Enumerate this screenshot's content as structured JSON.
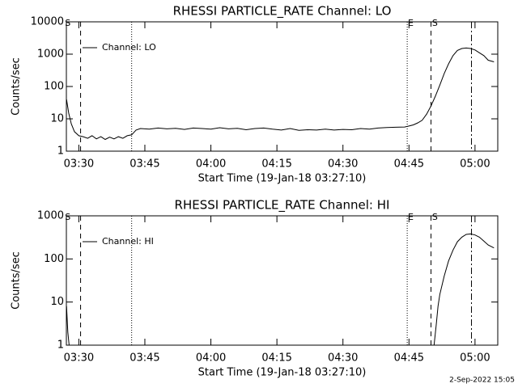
{
  "chart_data": [
    {
      "type": "line",
      "title": "RHESSI PARTICLE_RATE Channel: LO",
      "x_label": "Start Time (19-Jan-18 03:27:10)",
      "y_label": "Counts/sec",
      "log_y": true,
      "legend": "upper left",
      "xlim": [
        207.17,
        305.17
      ],
      "xticks": [
        {
          "value": 210,
          "label": "03:30"
        },
        {
          "value": 225,
          "label": "03:45"
        },
        {
          "value": 240,
          "label": "04:00"
        },
        {
          "value": 255,
          "label": "04:15"
        },
        {
          "value": 270,
          "label": "04:30"
        },
        {
          "value": 285,
          "label": "04:45"
        },
        {
          "value": 300,
          "label": "05:00"
        }
      ],
      "ylim": [
        1,
        10000
      ],
      "yticks": [
        1,
        10,
        100,
        1000,
        10000
      ],
      "x": [
        207.2,
        207.7,
        208.3,
        209,
        210,
        211,
        212,
        213,
        214,
        215,
        216,
        217,
        218,
        219,
        220,
        221,
        222,
        223,
        224,
        226,
        228,
        230,
        232,
        234,
        236,
        238,
        240,
        242,
        244,
        246,
        248,
        250,
        252,
        254,
        256,
        258,
        260,
        262,
        264,
        266,
        268,
        270,
        272,
        274,
        276,
        278,
        280,
        282,
        284,
        285,
        286,
        287,
        288,
        289,
        290,
        291,
        292,
        293,
        294,
        295,
        296,
        297,
        298,
        299,
        300,
        301,
        302,
        303,
        304.3
      ],
      "series": [
        {
          "name": "Channel: LO",
          "color": "#000000",
          "values": [
            40,
            15,
            7,
            4,
            3,
            2.8,
            2.5,
            3,
            2.4,
            2.8,
            2.3,
            2.7,
            2.4,
            2.8,
            2.5,
            3,
            3.2,
            4.5,
            5,
            4.8,
            5.2,
            4.9,
            5.1,
            4.7,
            5.2,
            5,
            4.8,
            5.3,
            4.9,
            5.1,
            4.6,
            5,
            5.2,
            4.8,
            4.5,
            5,
            4.4,
            4.6,
            4.5,
            4.8,
            4.5,
            4.7,
            4.6,
            5,
            4.8,
            5.2,
            5.4,
            5.5,
            5.6,
            6,
            6.5,
            7.5,
            9,
            14,
            25,
            50,
            110,
            250,
            500,
            900,
            1300,
            1500,
            1550,
            1500,
            1350,
            1100,
            900,
            650,
            580
          ]
        }
      ],
      "vlines": [
        {
          "x": 210.4,
          "style": "dashed"
        },
        {
          "x": 222.0,
          "style": "dotted"
        },
        {
          "x": 284.6,
          "style": "dotted"
        },
        {
          "x": 290.0,
          "style": "dashed"
        },
        {
          "x": 299.2,
          "style": "dashdot"
        }
      ],
      "annotations": [
        {
          "text": "S",
          "x": 207.5
        },
        {
          "text": "E",
          "x": 285.4
        },
        {
          "text": "S",
          "x": 290.9
        }
      ]
    },
    {
      "type": "line",
      "title": "RHESSI PARTICLE_RATE Channel: HI",
      "x_label": "Start Time (19-Jan-18 03:27:10)",
      "y_label": "Counts/sec",
      "log_y": true,
      "legend": "upper left",
      "xlim": [
        207.17,
        305.17
      ],
      "xticks": [
        {
          "value": 210,
          "label": "03:30"
        },
        {
          "value": 225,
          "label": "03:45"
        },
        {
          "value": 240,
          "label": "04:00"
        },
        {
          "value": 255,
          "label": "04:15"
        },
        {
          "value": 270,
          "label": "04:30"
        },
        {
          "value": 285,
          "label": "04:45"
        },
        {
          "value": 300,
          "label": "05:00"
        }
      ],
      "ylim": [
        1,
        1000
      ],
      "yticks": [
        1,
        10,
        100,
        1000
      ],
      "x": [
        207.2,
        207.5,
        207.8,
        290.7,
        291.2,
        291.6,
        292,
        293,
        294,
        295,
        296,
        297,
        298,
        299,
        300,
        301,
        302,
        303,
        304.3
      ],
      "series": [
        {
          "name": "Channel: HI",
          "color": "#000000",
          "values": [
            8,
            2,
            1,
            1,
            3,
            8,
            15,
            40,
            90,
            160,
            250,
            320,
            370,
            380,
            360,
            320,
            260,
            210,
            180
          ]
        }
      ],
      "vlines": [
        {
          "x": 210.4,
          "style": "dashed"
        },
        {
          "x": 222.0,
          "style": "dotted"
        },
        {
          "x": 284.6,
          "style": "dotted"
        },
        {
          "x": 290.0,
          "style": "dashed"
        },
        {
          "x": 299.2,
          "style": "dashdot"
        }
      ],
      "annotations": [
        {
          "text": "S",
          "x": 207.5
        },
        {
          "text": "E",
          "x": 285.4
        },
        {
          "text": "S",
          "x": 290.9
        }
      ]
    }
  ],
  "timestamp": "2-Sep-2022 15:05"
}
